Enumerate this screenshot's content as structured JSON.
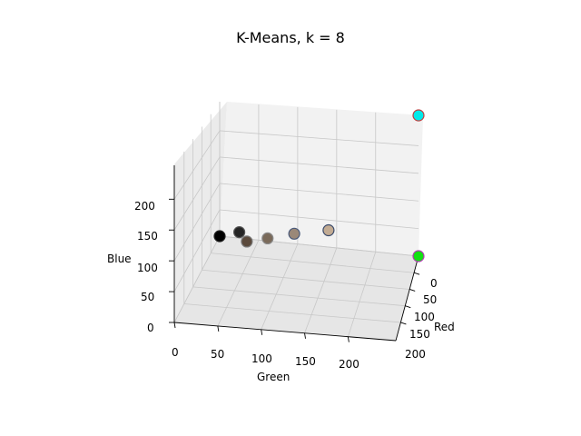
{
  "chart_data": {
    "type": "scatter",
    "title": "K-Means, k = 8",
    "xlabel": "Red",
    "ylabel": "Green",
    "zlabel": "Blue",
    "x_ticks": [
      "0",
      "50",
      "100",
      "150",
      "200"
    ],
    "y_ticks": [
      "0",
      "50",
      "100",
      "150",
      "200"
    ],
    "z_ticks": [
      "0",
      "50",
      "100",
      "150",
      "200"
    ],
    "grid": true,
    "points": [
      {
        "r": 0,
        "g": 0,
        "b": 0,
        "fill": "#000000",
        "edge": "#222222"
      },
      {
        "r": 32,
        "g": 32,
        "b": 32,
        "fill": "#252525",
        "edge": "#555555"
      },
      {
        "r": 64,
        "g": 48,
        "b": 36,
        "fill": "#5b4a3c",
        "edge": "#7a7a7a"
      },
      {
        "r": 96,
        "g": 80,
        "b": 64,
        "fill": "#7a6a5a",
        "edge": "#8a8a8a"
      },
      {
        "r": 140,
        "g": 120,
        "b": 100,
        "fill": "#9a8878",
        "edge": "#4a5a7a"
      },
      {
        "r": 200,
        "g": 170,
        "b": 140,
        "fill": "#c2ab93",
        "edge": "#3a4a6a"
      },
      {
        "r": 0,
        "g": 255,
        "b": 0,
        "fill": "#12e012",
        "edge": "#b23ab2"
      },
      {
        "r": 0,
        "g": 255,
        "b": 255,
        "fill": "#00eaea",
        "edge": "#c04040"
      }
    ]
  }
}
